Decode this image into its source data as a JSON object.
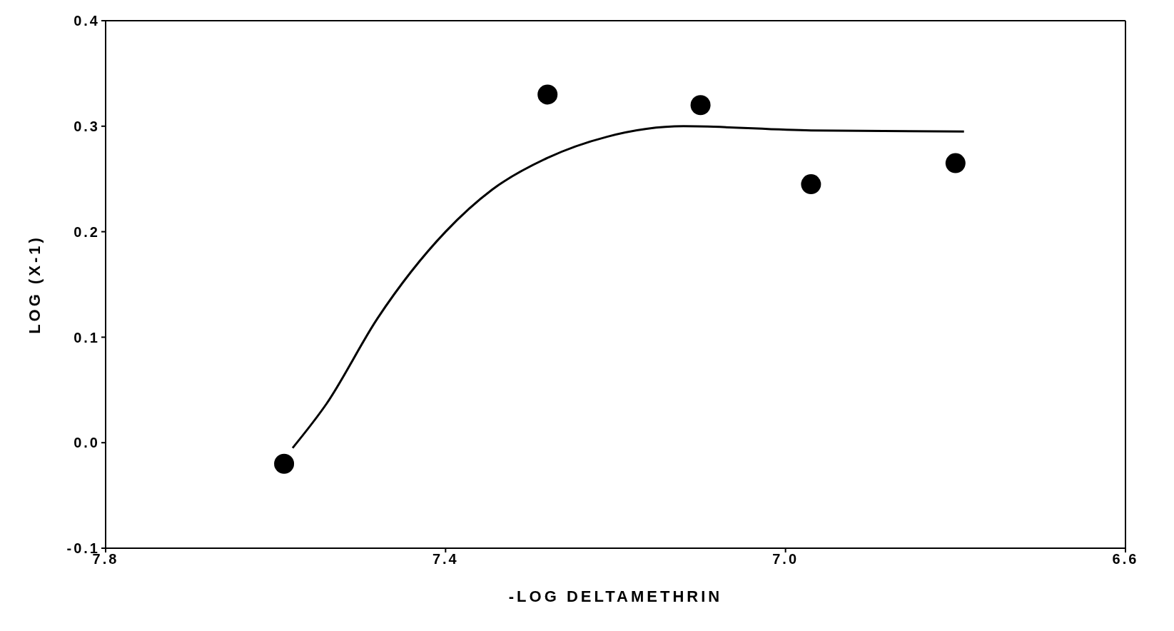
{
  "chart_data": {
    "type": "scatter",
    "xlabel": "-LOG DELTAMETHRIN",
    "ylabel": "LOG (X-1)",
    "xlim": [
      7.8,
      6.6
    ],
    "xticks": [
      {
        "value": 7.8,
        "label": "7.8"
      },
      {
        "value": 7.4,
        "label": "7.4"
      },
      {
        "value": 7.0,
        "label": "7.0"
      },
      {
        "value": 6.6,
        "label": "6.6"
      }
    ],
    "ylim": [
      -0.1,
      0.4
    ],
    "yticks": [
      {
        "value": -0.1,
        "label": "-0.1"
      },
      {
        "value": 0,
        "label": "0.0"
      },
      {
        "value": 0.1,
        "label": "0.1"
      },
      {
        "value": 0.2,
        "label": "0.2"
      },
      {
        "value": 0.3,
        "label": "0.3"
      },
      {
        "value": 0.4,
        "label": "0.4"
      }
    ],
    "series": [
      {
        "marker": "circle",
        "color": "#000000",
        "x": [
          7.59,
          7.28,
          7.1,
          6.97,
          6.8
        ],
        "values": [
          -0.02,
          0.33,
          0.32,
          0.245,
          0.265
        ]
      },
      {
        "type": "line",
        "marker": "none",
        "line_style": "solid",
        "color": "#000000",
        "x": [
          7.58,
          7.54,
          7.48,
          7.4,
          7.345,
          7.28,
          7.21,
          7.12,
          6.97,
          6.79
        ],
        "values": [
          -0.005,
          0.037,
          0.118,
          0.2,
          0.24,
          0.27,
          0.29,
          0.3,
          0.296,
          0.295
        ]
      }
    ]
  }
}
